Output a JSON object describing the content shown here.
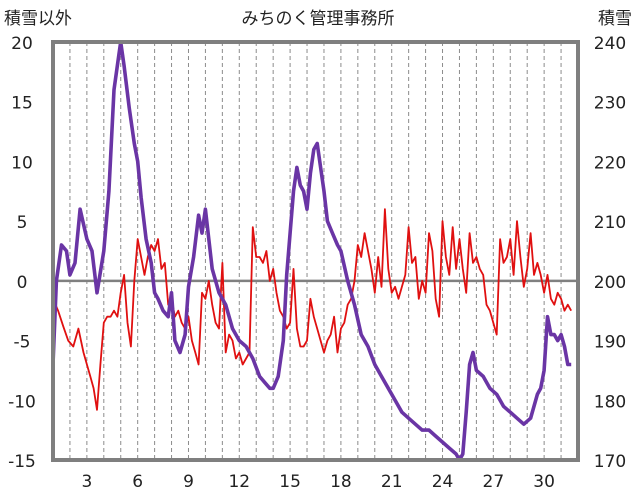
{
  "chart_data": {
    "type": "line",
    "title": "みちのく管理事務所",
    "left_axis_label": "積雪以外",
    "right_axis_label": "積雪",
    "ylim_left": [
      -15,
      20
    ],
    "ylim_right": [
      170,
      240
    ],
    "left_ticks": [
      "20",
      "15",
      "10",
      "5",
      "0",
      "-5",
      "-10",
      "-15"
    ],
    "right_ticks": [
      "240",
      "230",
      "220",
      "210",
      "200",
      "190",
      "180",
      "170"
    ],
    "xlim": [
      1,
      32
    ],
    "x_tick_labels": [
      "3",
      "6",
      "9",
      "12",
      "15",
      "18",
      "21",
      "24",
      "27",
      "30"
    ],
    "x_tick_values": [
      3,
      6,
      9,
      12,
      15,
      18,
      21,
      24,
      27,
      30
    ],
    "grid": "vertical-dashed-daily",
    "zero_line": true,
    "series": [
      {
        "color": "#e01010",
        "axis": "left",
        "x": [
          1.0,
          1.3,
          1.6,
          1.9,
          2.2,
          2.5,
          2.8,
          3.0,
          3.2,
          3.4,
          3.6,
          3.8,
          4.0,
          4.2,
          4.4,
          4.6,
          4.8,
          5.0,
          5.2,
          5.4,
          5.6,
          5.8,
          6.0,
          6.2,
          6.4,
          6.6,
          6.8,
          7.0,
          7.2,
          7.4,
          7.6,
          7.8,
          8.0,
          8.2,
          8.4,
          8.6,
          8.8,
          9.0,
          9.2,
          9.4,
          9.6,
          9.8,
          10.0,
          10.2,
          10.4,
          10.6,
          10.8,
          11.0,
          11.2,
          11.4,
          11.6,
          11.8,
          12.0,
          12.2,
          12.4,
          12.6,
          12.8,
          13.0,
          13.2,
          13.4,
          13.6,
          13.8,
          14.0,
          14.2,
          14.4,
          14.6,
          14.8,
          15.0,
          15.2,
          15.4,
          15.6,
          15.8,
          16.0,
          16.2,
          16.4,
          16.6,
          16.8,
          17.0,
          17.2,
          17.4,
          17.6,
          17.8,
          18.0,
          18.2,
          18.4,
          18.6,
          18.8,
          19.0,
          19.2,
          19.4,
          19.6,
          19.8,
          20.0,
          20.2,
          20.4,
          20.6,
          20.8,
          21.0,
          21.2,
          21.4,
          21.6,
          21.8,
          22.0,
          22.2,
          22.4,
          22.6,
          22.8,
          23.0,
          23.2,
          23.4,
          23.6,
          23.8,
          24.0,
          24.2,
          24.4,
          24.6,
          24.8,
          25.0,
          25.2,
          25.4,
          25.6,
          25.8,
          26.0,
          26.2,
          26.4,
          26.6,
          26.8,
          27.0,
          27.2,
          27.4,
          27.6,
          27.8,
          28.0,
          28.2,
          28.4,
          28.6,
          28.8,
          29.0,
          29.2,
          29.4,
          29.6,
          29.8,
          30.0,
          30.2,
          30.4,
          30.6,
          30.8,
          31.0,
          31.2,
          31.4,
          31.6
        ],
        "y": [
          -1.5,
          -2.5,
          -3.8,
          -5.0,
          -5.5,
          -4.0,
          -6.0,
          -7.0,
          -8.0,
          -9.0,
          -10.8,
          -7.0,
          -3.5,
          -3.0,
          -3.0,
          -2.5,
          -3.0,
          -1.0,
          0.5,
          -3.5,
          -5.5,
          0.0,
          3.5,
          2.0,
          0.5,
          2.0,
          3.0,
          2.5,
          3.5,
          1.0,
          1.5,
          -2.0,
          -1.5,
          -3.0,
          -2.5,
          -3.5,
          -4.0,
          -3.0,
          -5.0,
          -6.0,
          -7.0,
          -1.0,
          -1.5,
          0.0,
          -2.0,
          -3.5,
          -4.0,
          1.5,
          -6.0,
          -4.5,
          -5.0,
          -6.5,
          -6.0,
          -7.0,
          -6.5,
          -6.0,
          4.5,
          2.0,
          2.0,
          1.5,
          2.5,
          0.0,
          1.0,
          -1.0,
          -2.5,
          -3.0,
          -4.0,
          -3.5,
          1.0,
          -4.0,
          -5.5,
          -5.5,
          -5.0,
          -1.5,
          -3.0,
          -4.0,
          -5.0,
          -6.0,
          -5.0,
          -4.5,
          -3.0,
          -6.0,
          -4.0,
          -3.5,
          -2.0,
          -1.5,
          0.0,
          3.0,
          2.0,
          4.0,
          2.5,
          1.0,
          -1.0,
          2.0,
          -0.5,
          6.0,
          1.0,
          -1.0,
          -0.5,
          -1.5,
          -0.5,
          0.5,
          4.5,
          1.5,
          2.0,
          -1.5,
          0.0,
          -1.0,
          4.0,
          2.5,
          -1.5,
          -3.0,
          5.0,
          2.0,
          0.5,
          4.5,
          1.0,
          3.5,
          1.0,
          -1.0,
          4.0,
          1.5,
          2.0,
          1.0,
          0.5,
          -2.0,
          -2.5,
          -3.5,
          -4.5,
          3.5,
          1.5,
          2.0,
          3.5,
          0.5,
          5.0,
          2.0,
          -0.5,
          1.0,
          4.0,
          0.5,
          1.5,
          0.5,
          -1.0,
          0.5,
          -1.5,
          -2.0,
          -1.0,
          -1.5,
          -2.5,
          -2.0,
          -2.5
        ]
      },
      {
        "color": "#6a35a5",
        "axis": "right",
        "x": [
          1.0,
          1.2,
          1.5,
          1.8,
          2.0,
          2.3,
          2.6,
          3.0,
          3.3,
          3.6,
          4.0,
          4.3,
          4.6,
          4.9,
          5.0,
          5.2,
          5.5,
          5.8,
          6.0,
          6.2,
          6.5,
          6.8,
          7.0,
          7.2,
          7.5,
          7.8,
          8.0,
          8.2,
          8.5,
          8.8,
          9.0,
          9.3,
          9.6,
          9.8,
          10.0,
          10.4,
          10.8,
          11.2,
          11.6,
          12.0,
          12.4,
          12.8,
          13.2,
          13.5,
          13.8,
          14.0,
          14.3,
          14.6,
          14.8,
          15.0,
          15.2,
          15.4,
          15.6,
          15.8,
          16.0,
          16.2,
          16.4,
          16.6,
          16.8,
          17.0,
          17.2,
          17.5,
          17.8,
          18.0,
          18.4,
          18.8,
          19.2,
          19.6,
          20.0,
          20.4,
          20.8,
          21.2,
          21.6,
          22.0,
          22.4,
          22.8,
          23.2,
          23.6,
          24.0,
          24.4,
          24.8,
          25.0,
          25.2,
          25.4,
          25.6,
          25.8,
          26.0,
          26.4,
          26.8,
          27.2,
          27.6,
          28.0,
          28.4,
          28.8,
          29.2,
          29.6,
          29.8,
          30.0,
          30.2,
          30.4,
          30.6,
          30.8,
          31.0,
          31.2,
          31.4,
          31.6
        ],
        "y": [
          186,
          200,
          206,
          205,
          201,
          203,
          212,
          207,
          205,
          198,
          205,
          215,
          232,
          238,
          240,
          236,
          229,
          223,
          220,
          214,
          207,
          203,
          198,
          197,
          195,
          194,
          198,
          190,
          188,
          191,
          199,
          204,
          211,
          208,
          212,
          202,
          198,
          196,
          192,
          190,
          189,
          187,
          184,
          183,
          182,
          182,
          184,
          190,
          201,
          208,
          215,
          219,
          216,
          215,
          212,
          218,
          222,
          223,
          219,
          215,
          210,
          208,
          206,
          205,
          200,
          196,
          191,
          189,
          186,
          184,
          182,
          180,
          178,
          177,
          176,
          175,
          175,
          174,
          173,
          172,
          171,
          170,
          171,
          178,
          186,
          188,
          185,
          184,
          182,
          181,
          179,
          178,
          177,
          176,
          177,
          181,
          182,
          185,
          194,
          191,
          191,
          190,
          191,
          189,
          186,
          186
        ]
      }
    ]
  }
}
